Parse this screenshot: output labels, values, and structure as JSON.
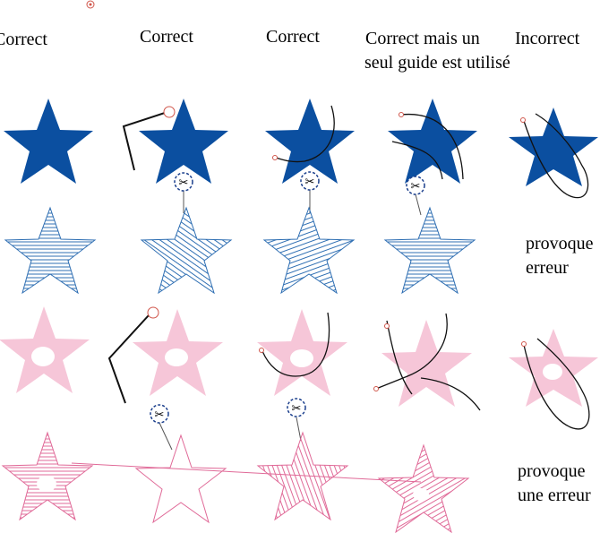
{
  "columns": [
    "Correct",
    "Correct",
    "Correct",
    "Correct mais un",
    "Incorrect"
  ],
  "column_line2": "seul guide est utilisé",
  "row2_note": [
    "provoque",
    "erreur"
  ],
  "row4_note": [
    "provoque",
    "une erreur"
  ],
  "colors": {
    "blue": "#0b4fa0",
    "stitch_blue": "#2f6fb3",
    "pink": "#f6c6d8",
    "stitch_pink": "#e06a98",
    "scissor": "#1a3e8c",
    "marker": "#d0554a"
  }
}
